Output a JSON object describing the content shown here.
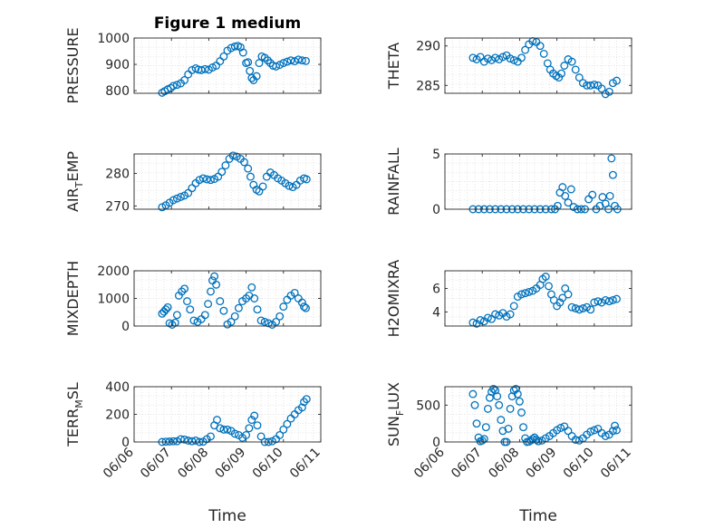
{
  "figure": {
    "title": "Figure 1 medium",
    "xlabel": "Time"
  },
  "chart_data": [
    {
      "type": "scatter",
      "name": "pressure",
      "title": "Figure 1 medium",
      "ylabel": "PRESSURE",
      "ylabel_sub": "",
      "xlabel": "",
      "ylim": [
        790,
        1000
      ],
      "yticks": [
        800,
        900,
        1000
      ],
      "xlim": [
        0,
        5
      ],
      "grid": true,
      "x": [
        0.75,
        0.82,
        0.9,
        0.98,
        1.05,
        1.15,
        1.25,
        1.35,
        1.45,
        1.55,
        1.65,
        1.72,
        1.8,
        1.9,
        2.0,
        2.1,
        2.2,
        2.3,
        2.4,
        2.5,
        2.6,
        2.7,
        2.78,
        2.85,
        2.92,
        3.0,
        3.05,
        3.1,
        3.15,
        3.2,
        3.28,
        3.35,
        3.42,
        3.5,
        3.58,
        3.65,
        3.72,
        3.8,
        3.9,
        4.0,
        4.1,
        4.2,
        4.3,
        4.4,
        4.5,
        4.6
      ],
      "y": [
        792,
        798,
        805,
        810,
        818,
        822,
        828,
        840,
        862,
        878,
        885,
        880,
        878,
        882,
        880,
        888,
        895,
        912,
        930,
        952,
        962,
        968,
        970,
        965,
        945,
        905,
        908,
        875,
        848,
        840,
        855,
        905,
        930,
        925,
        915,
        905,
        895,
        892,
        898,
        905,
        910,
        915,
        912,
        918,
        915,
        913
      ]
    },
    {
      "type": "scatter",
      "name": "theta",
      "ylabel": "THETA",
      "ylabel_sub": "",
      "ylim": [
        284,
        291
      ],
      "yticks": [
        285,
        290
      ],
      "xlim": [
        0,
        5
      ],
      "grid": true,
      "x": [
        0.75,
        0.85,
        0.95,
        1.05,
        1.15,
        1.25,
        1.35,
        1.45,
        1.55,
        1.65,
        1.75,
        1.85,
        1.95,
        2.05,
        2.15,
        2.25,
        2.35,
        2.45,
        2.55,
        2.65,
        2.75,
        2.82,
        2.9,
        2.98,
        3.05,
        3.12,
        3.2,
        3.3,
        3.4,
        3.5,
        3.6,
        3.7,
        3.8,
        3.9,
        4.0,
        4.1,
        4.2,
        4.3,
        4.4,
        4.5,
        4.6
      ],
      "y": [
        288.5,
        288.3,
        288.6,
        288.0,
        288.4,
        288.2,
        288.5,
        288.3,
        288.6,
        288.8,
        288.4,
        288.2,
        288.0,
        288.5,
        289.5,
        290.2,
        290.6,
        290.5,
        290.0,
        289.0,
        287.8,
        287.0,
        286.5,
        286.2,
        286.0,
        286.5,
        287.5,
        288.3,
        288.0,
        287.0,
        286.0,
        285.3,
        285.0,
        285.0,
        285.1,
        285.0,
        284.6,
        283.9,
        284.2,
        285.3,
        285.6
      ]
    },
    {
      "type": "scatter",
      "name": "air-temp",
      "ylabel": "AIR",
      "ylabel_sub": "T",
      "ylabel_tail": "EMP",
      "ylim": [
        269,
        286
      ],
      "yticks": [
        270,
        280
      ],
      "xlim": [
        0,
        5
      ],
      "grid": true,
      "x": [
        0.75,
        0.85,
        0.95,
        1.05,
        1.15,
        1.25,
        1.35,
        1.45,
        1.55,
        1.65,
        1.75,
        1.85,
        1.95,
        2.05,
        2.15,
        2.25,
        2.35,
        2.45,
        2.55,
        2.65,
        2.75,
        2.85,
        2.95,
        3.05,
        3.12,
        3.2,
        3.28,
        3.35,
        3.45,
        3.55,
        3.65,
        3.75,
        3.85,
        3.95,
        4.05,
        4.15,
        4.25,
        4.35,
        4.45,
        4.55,
        4.62
      ],
      "y": [
        269.6,
        270.2,
        271.0,
        271.8,
        272.3,
        272.8,
        273.2,
        274.0,
        275.5,
        277.0,
        278.0,
        278.5,
        278.2,
        278.0,
        278.3,
        279.0,
        280.5,
        282.5,
        284.5,
        285.5,
        285.2,
        284.5,
        283.5,
        281.5,
        279.0,
        276.5,
        275.0,
        274.5,
        276.0,
        279.0,
        280.3,
        279.5,
        278.5,
        277.8,
        277.0,
        276.2,
        275.8,
        276.5,
        277.8,
        278.5,
        278.2
      ]
    },
    {
      "type": "scatter",
      "name": "rainfall",
      "ylabel": "RAINFALL",
      "ylabel_sub": "",
      "ylim": [
        0,
        5
      ],
      "yticks": [
        0,
        5
      ],
      "xlim": [
        0,
        5
      ],
      "grid": true,
      "x": [
        0.75,
        0.9,
        1.05,
        1.2,
        1.35,
        1.5,
        1.65,
        1.8,
        1.95,
        2.1,
        2.25,
        2.4,
        2.55,
        2.7,
        2.85,
        2.95,
        3.02,
        3.08,
        3.15,
        3.22,
        3.3,
        3.38,
        3.45,
        3.55,
        3.65,
        3.75,
        3.85,
        3.95,
        4.05,
        4.15,
        4.22,
        4.3,
        4.38,
        4.42,
        4.46,
        4.5,
        4.55,
        4.62
      ],
      "y": [
        0,
        0,
        0,
        0,
        0,
        0,
        0,
        0,
        0,
        0,
        0,
        0,
        0,
        0,
        0,
        0,
        0.3,
        1.5,
        2.0,
        1.2,
        0.6,
        1.8,
        0.2,
        0,
        0,
        0,
        0.9,
        1.3,
        0,
        0.3,
        1.1,
        0.5,
        0,
        1.2,
        4.6,
        3.1,
        0.3,
        0
      ]
    },
    {
      "type": "scatter",
      "name": "mixdepth",
      "ylabel": "MIXDEPTH",
      "ylabel_sub": "",
      "ylim": [
        0,
        2000
      ],
      "yticks": [
        0,
        1000,
        2000
      ],
      "xlim": [
        0,
        5
      ],
      "grid": true,
      "x": [
        0.75,
        0.8,
        0.85,
        0.9,
        0.95,
        1.02,
        1.1,
        1.15,
        1.2,
        1.28,
        1.35,
        1.42,
        1.5,
        1.6,
        1.7,
        1.8,
        1.9,
        1.98,
        2.05,
        2.1,
        2.15,
        2.2,
        2.3,
        2.4,
        2.5,
        2.6,
        2.7,
        2.8,
        2.9,
        3.0,
        3.08,
        3.15,
        3.22,
        3.3,
        3.4,
        3.5,
        3.6,
        3.7,
        3.8,
        3.9,
        4.0,
        4.1,
        4.2,
        4.3,
        4.4,
        4.5,
        4.55,
        4.6
      ],
      "y": [
        450,
        520,
        600,
        680,
        100,
        50,
        120,
        400,
        1100,
        1250,
        1350,
        900,
        600,
        200,
        150,
        250,
        400,
        800,
        1250,
        1650,
        1800,
        1500,
        900,
        550,
        60,
        150,
        350,
        650,
        900,
        1000,
        1100,
        1400,
        1000,
        600,
        200,
        150,
        100,
        50,
        150,
        350,
        700,
        950,
        1100,
        1200,
        1000,
        850,
        700,
        650
      ]
    },
    {
      "type": "scatter",
      "name": "h2omixra",
      "ylabel": "H2OMIXRA",
      "ylabel_sub": "",
      "ylim": [
        2.8,
        7.5
      ],
      "yticks": [
        4,
        6
      ],
      "xlim": [
        0,
        5
      ],
      "grid": true,
      "x": [
        0.75,
        0.85,
        0.95,
        1.05,
        1.15,
        1.25,
        1.35,
        1.45,
        1.55,
        1.65,
        1.75,
        1.85,
        1.95,
        2.05,
        2.15,
        2.25,
        2.35,
        2.45,
        2.55,
        2.62,
        2.7,
        2.78,
        2.85,
        2.92,
        3.0,
        3.08,
        3.15,
        3.22,
        3.3,
        3.4,
        3.5,
        3.6,
        3.7,
        3.8,
        3.9,
        4.0,
        4.1,
        4.2,
        4.3,
        4.4,
        4.5,
        4.6
      ],
      "y": [
        3.1,
        3.0,
        3.3,
        3.2,
        3.5,
        3.4,
        3.8,
        3.7,
        3.9,
        3.6,
        3.8,
        4.5,
        5.3,
        5.5,
        5.6,
        5.7,
        5.8,
        6.0,
        6.3,
        6.8,
        7.0,
        6.2,
        5.5,
        5.0,
        4.5,
        4.8,
        5.2,
        6.0,
        5.5,
        4.4,
        4.3,
        4.2,
        4.3,
        4.4,
        4.2,
        4.8,
        4.9,
        4.8,
        5.0,
        4.9,
        5.0,
        5.1
      ]
    },
    {
      "type": "scatter",
      "name": "terr-msl",
      "ylabel": "TERR",
      "ylabel_sub": "M",
      "ylabel_tail": "SL",
      "ylim": [
        0,
        400
      ],
      "yticks": [
        0,
        200,
        400
      ],
      "xlim": [
        0,
        5
      ],
      "grid": true,
      "xticks": [
        "06/06",
        "06/07",
        "06/08",
        "06/09",
        "06/10",
        "06/11"
      ],
      "x": [
        0.75,
        0.85,
        0.95,
        1.05,
        1.15,
        1.25,
        1.35,
        1.45,
        1.55,
        1.65,
        1.75,
        1.85,
        1.95,
        2.05,
        2.15,
        2.22,
        2.3,
        2.4,
        2.5,
        2.6,
        2.7,
        2.8,
        2.9,
        3.0,
        3.08,
        3.15,
        3.22,
        3.3,
        3.4,
        3.5,
        3.6,
        3.7,
        3.8,
        3.9,
        4.0,
        4.1,
        4.2,
        4.3,
        4.4,
        4.5,
        4.55,
        4.62
      ],
      "y": [
        0,
        2,
        3,
        5,
        5,
        20,
        18,
        10,
        5,
        10,
        0,
        2,
        20,
        40,
        120,
        160,
        100,
        90,
        90,
        80,
        60,
        50,
        30,
        50,
        100,
        160,
        190,
        120,
        40,
        0,
        0,
        5,
        20,
        50,
        90,
        130,
        170,
        200,
        230,
        250,
        290,
        310
      ]
    },
    {
      "type": "scatter",
      "name": "sun-flux",
      "ylabel": "SUN",
      "ylabel_sub": "F",
      "ylabel_tail": "LUX",
      "ylim": [
        0,
        750
      ],
      "yticks": [
        0,
        500
      ],
      "xlim": [
        0,
        5
      ],
      "grid": true,
      "xticks": [
        "06/06",
        "06/07",
        "06/08",
        "06/09",
        "06/10",
        "06/11"
      ],
      "x": [
        0.75,
        0.8,
        0.85,
        0.9,
        0.95,
        1.0,
        1.05,
        1.1,
        1.15,
        1.2,
        1.25,
        1.3,
        1.35,
        1.4,
        1.45,
        1.5,
        1.55,
        1.6,
        1.65,
        1.7,
        1.75,
        1.8,
        1.85,
        1.9,
        1.95,
        2.0,
        2.05,
        2.1,
        2.15,
        2.2,
        2.25,
        2.3,
        2.35,
        2.4,
        2.45,
        2.5,
        2.6,
        2.7,
        2.8,
        2.9,
        3.0,
        3.1,
        3.2,
        3.3,
        3.4,
        3.5,
        3.6,
        3.7,
        3.8,
        3.9,
        4.0,
        4.1,
        4.2,
        4.3,
        4.4,
        4.5,
        4.55,
        4.6
      ],
      "y": [
        650,
        500,
        250,
        60,
        10,
        20,
        40,
        200,
        450,
        600,
        680,
        720,
        700,
        620,
        500,
        300,
        150,
        0,
        0,
        180,
        450,
        620,
        700,
        720,
        650,
        550,
        400,
        200,
        50,
        0,
        5,
        20,
        40,
        60,
        30,
        10,
        20,
        50,
        80,
        120,
        160,
        190,
        210,
        150,
        80,
        30,
        20,
        50,
        100,
        140,
        160,
        180,
        120,
        80,
        100,
        150,
        220,
        160
      ]
    }
  ]
}
